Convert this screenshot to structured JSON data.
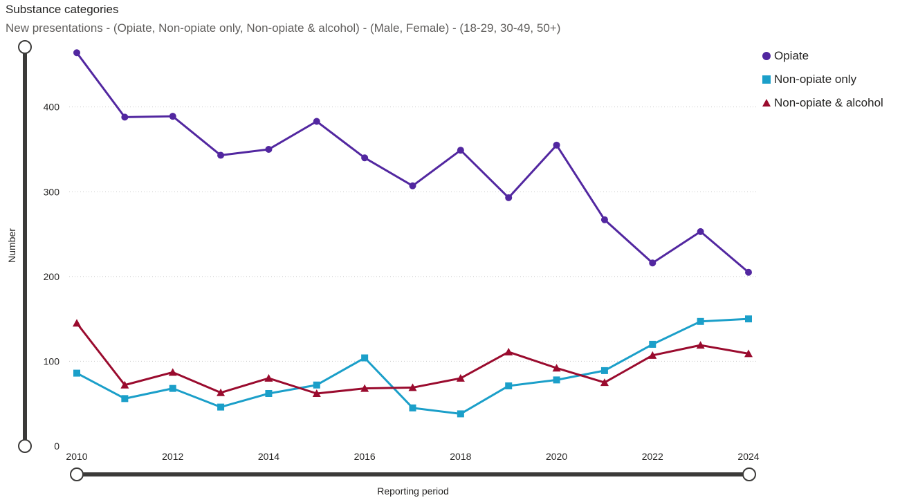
{
  "header": {
    "title": "Substance categories",
    "subtitle": "New presentations - (Opiate, Non-opiate only, Non-opiate & alcohol) - (Male, Female) - (18-29, 30-49, 50+)"
  },
  "chart_data": {
    "type": "line",
    "xlabel": "Reporting period",
    "ylabel": "Number",
    "x": [
      2010,
      2011,
      2012,
      2013,
      2014,
      2015,
      2016,
      2017,
      2018,
      2019,
      2020,
      2021,
      2022,
      2023,
      2024
    ],
    "x_ticks": [
      "2010",
      "2012",
      "2014",
      "2016",
      "2018",
      "2020",
      "2022",
      "2024"
    ],
    "y_ticks": [
      "0",
      "100",
      "200",
      "300",
      "400"
    ],
    "ylim": [
      0,
      465
    ],
    "grid": true,
    "legend_position": "top-right",
    "series": [
      {
        "name": "Opiate",
        "marker": "circle",
        "color": "#5227a0",
        "values": [
          464,
          388,
          389,
          343,
          350,
          383,
          340,
          307,
          349,
          293,
          355,
          267,
          216,
          253,
          205
        ]
      },
      {
        "name": "Non-opiate only",
        "marker": "square",
        "color": "#1b9fc9",
        "values": [
          86,
          56,
          68,
          46,
          62,
          72,
          104,
          45,
          38,
          71,
          78,
          89,
          120,
          147,
          150
        ]
      },
      {
        "name": "Non-opiate & alcohol",
        "marker": "triangle",
        "color": "#9a0b2e",
        "values": [
          145,
          72,
          87,
          63,
          80,
          62,
          68,
          69,
          80,
          111,
          92,
          75,
          107,
          119,
          109
        ]
      }
    ]
  }
}
